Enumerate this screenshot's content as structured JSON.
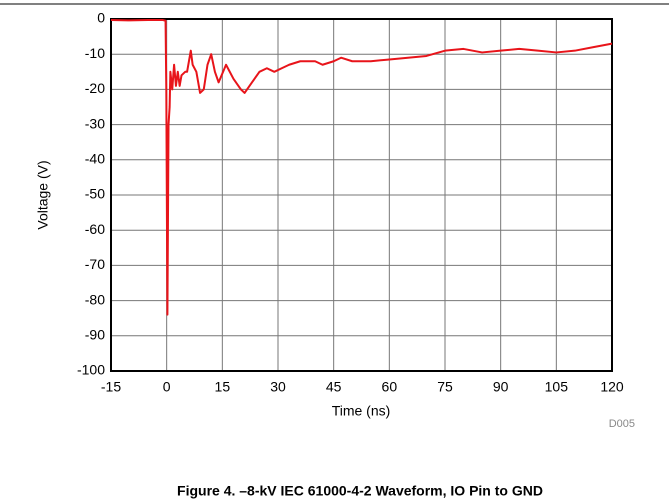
{
  "chart_data": {
    "type": "line",
    "xlabel": "Time (ns)",
    "ylabel": "Voltage (V)",
    "annotation": "D005",
    "caption": "Figure 4. –8-kV IEC 61000-4-2 Waveform, IO Pin to GND",
    "xlim": [
      -15,
      120
    ],
    "xticks": [
      -15,
      0,
      15,
      30,
      45,
      60,
      75,
      90,
      105,
      120
    ],
    "ylim": [
      -100,
      0
    ],
    "yticks": [
      0,
      -10,
      -20,
      -30,
      -40,
      -50,
      -60,
      -70,
      -80,
      -90,
      -100
    ],
    "grid": true,
    "series": [
      {
        "color": "#e8141a",
        "x": [
          -15,
          -10,
          -5,
          -1,
          -0.3,
          -0.1,
          0.2,
          0.5,
          0.8,
          1,
          1.5,
          2,
          2.5,
          3,
          3.5,
          4,
          5,
          5.5,
          6.5,
          7,
          8,
          9,
          10,
          11,
          12,
          13,
          14,
          16,
          18,
          20,
          21,
          23,
          25,
          27,
          29,
          31,
          33,
          36,
          40,
          42,
          45,
          47,
          50,
          55,
          60,
          65,
          70,
          75,
          80,
          85,
          90,
          95,
          100,
          105,
          110,
          115,
          120
        ],
        "values": [
          -0.3,
          -0.4,
          -0.3,
          -0.3,
          -0.5,
          -20,
          -84,
          -30,
          -25,
          -15,
          -20,
          -13,
          -19,
          -15,
          -19,
          -16,
          -15,
          -15,
          -9,
          -13,
          -15,
          -21,
          -20,
          -13,
          -10,
          -15,
          -18,
          -13,
          -17,
          -20,
          -21,
          -18,
          -15,
          -14,
          -15,
          -14,
          -13,
          -12,
          -12,
          -13,
          -12,
          -11,
          -12,
          -12,
          -11.5,
          -11,
          -10.5,
          -9,
          -8.5,
          -9.5,
          -9,
          -8.5,
          -9,
          -9.5,
          -9,
          -8,
          -7
        ]
      }
    ]
  }
}
